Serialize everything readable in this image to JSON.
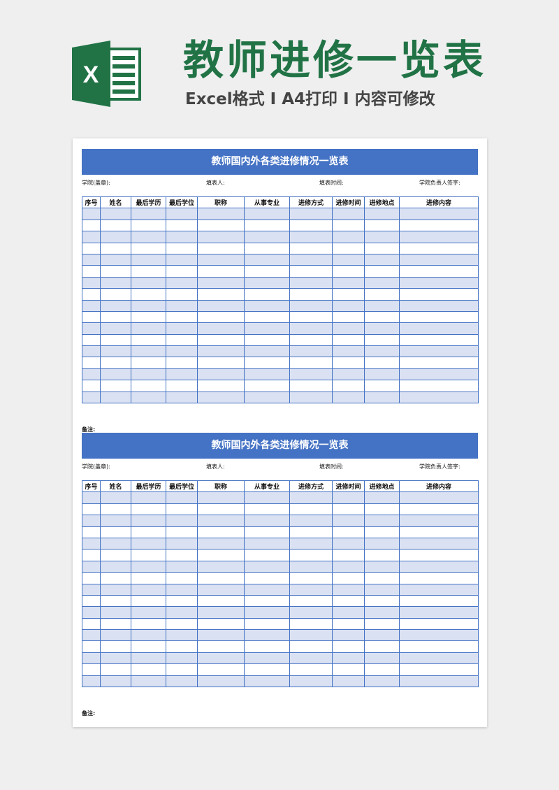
{
  "header": {
    "title": "教师进修一览表",
    "subtitle": "Excel格式 Ⅰ A4打印 Ⅰ 内容可修改",
    "logo_icon": "excel-logo-icon",
    "brand_color": "#217346"
  },
  "sheets": [
    {
      "title": "教师国内外各类进修情况一览表",
      "info": [
        "学院(盖章):",
        "填表人:",
        "填表时间:",
        "学院负责人签字:"
      ],
      "columns": [
        "序号",
        "姓名",
        "最后学历",
        "最后学位",
        "职称",
        "从事专业",
        "进修方式",
        "进修时间",
        "进修地点",
        "进修内容"
      ],
      "row_count": 17,
      "note": "备注:"
    },
    {
      "title": "教师国内外各类进修情况一览表",
      "info": [
        "学院(盖章):",
        "填表人:",
        "填表时间:",
        "学院负责人签字:"
      ],
      "columns": [
        "序号",
        "姓名",
        "最后学历",
        "最后学位",
        "职称",
        "从事专业",
        "进修方式",
        "进修时间",
        "进修地点",
        "进修内容"
      ],
      "row_count": 17,
      "note": "备注:"
    }
  ],
  "colors": {
    "banner": "#4472c4",
    "stripe": "#d9e1f2"
  }
}
